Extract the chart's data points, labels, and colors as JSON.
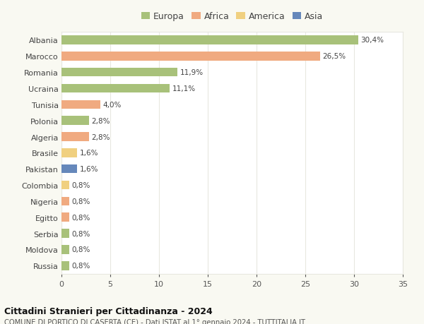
{
  "countries": [
    "Albania",
    "Marocco",
    "Romania",
    "Ucraina",
    "Tunisia",
    "Polonia",
    "Algeria",
    "Brasile",
    "Pakistan",
    "Colombia",
    "Nigeria",
    "Egitto",
    "Serbia",
    "Moldova",
    "Russia"
  ],
  "values": [
    30.4,
    26.5,
    11.9,
    11.1,
    4.0,
    2.8,
    2.8,
    1.6,
    1.6,
    0.8,
    0.8,
    0.8,
    0.8,
    0.8,
    0.8
  ],
  "labels": [
    "30,4%",
    "26,5%",
    "11,9%",
    "11,1%",
    "4,0%",
    "2,8%",
    "2,8%",
    "1,6%",
    "1,6%",
    "0,8%",
    "0,8%",
    "0,8%",
    "0,8%",
    "0,8%",
    "0,8%"
  ],
  "colors": [
    "#a8c17a",
    "#f0aa80",
    "#a8c17a",
    "#a8c17a",
    "#f0aa80",
    "#a8c17a",
    "#f0aa80",
    "#f0d080",
    "#6688bb",
    "#f0d080",
    "#f0aa80",
    "#f0aa80",
    "#a8c17a",
    "#a8c17a",
    "#a8c17a"
  ],
  "legend_labels": [
    "Europa",
    "Africa",
    "America",
    "Asia"
  ],
  "legend_colors": [
    "#a8c17a",
    "#f0aa80",
    "#f0d080",
    "#6688bb"
  ],
  "title": "Cittadini Stranieri per Cittadinanza - 2024",
  "subtitle": "COMUNE DI PORTICO DI CASERTA (CE) - Dati ISTAT al 1° gennaio 2024 - TUTTITALIA.IT",
  "xlim": [
    0,
    35
  ],
  "xticks": [
    0,
    5,
    10,
    15,
    20,
    25,
    30,
    35
  ],
  "background_color": "#f9f9f2",
  "bar_background": "#ffffff",
  "grid_color": "#e8e8e0"
}
